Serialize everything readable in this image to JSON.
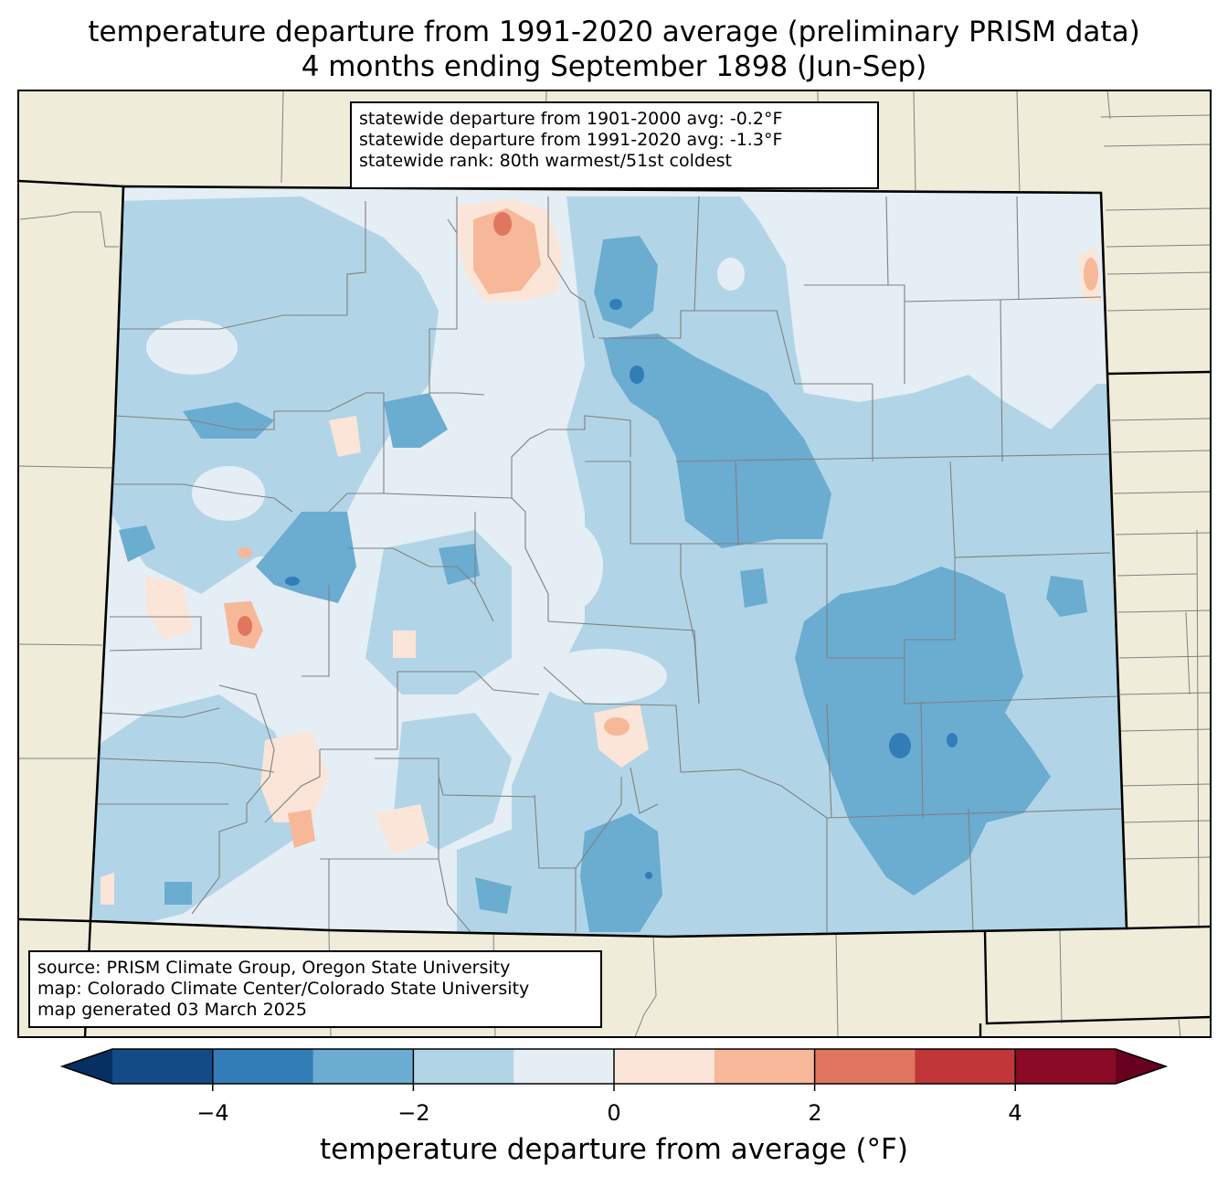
{
  "title": {
    "line1": "temperature departure from 1991-2020 average (preliminary PRISM data)",
    "line2": "4 months ending September 1898 (Jun-Sep)"
  },
  "stats": {
    "line1": "statewide departure from 1901-2000 avg: -0.2°F",
    "line2": "statewide departure from 1991-2020 avg: -1.3°F",
    "line3": "statewide rank: 80th warmest/51st coldest"
  },
  "credits": {
    "line1": "source: PRISM Climate Group, Oregon State University",
    "line2": "map: Colorado Climate Center/Colorado State University",
    "line3": "map generated 03 March 2025"
  },
  "colorbar": {
    "label": "temperature departure from average (°F)",
    "ticks": [
      "−4",
      "−2",
      "0",
      "2",
      "4"
    ],
    "tick_values": [
      -4,
      -2,
      0,
      2,
      4
    ],
    "bins": [
      {
        "from": -5,
        "to": -4,
        "color": "#134b87"
      },
      {
        "from": -4,
        "to": -3,
        "color": "#327db7"
      },
      {
        "from": -3,
        "to": -2,
        "color": "#6bacd1"
      },
      {
        "from": -2,
        "to": -1,
        "color": "#b1d5e7"
      },
      {
        "from": -1,
        "to": 0,
        "color": "#e5eef4"
      },
      {
        "from": 0,
        "to": 1,
        "color": "#fbe5d8"
      },
      {
        "from": 1,
        "to": 2,
        "color": "#f7b799"
      },
      {
        "from": 2,
        "to": 3,
        "color": "#e0765f"
      },
      {
        "from": 3,
        "to": 4,
        "color": "#c03639"
      },
      {
        "from": 4,
        "to": 5,
        "color": "#8b0a25"
      }
    ],
    "under_color": "#053061",
    "over_color": "#67001f"
  },
  "colors": {
    "land_background": "#efedda",
    "state_border": "#000000",
    "county_border": "#808080"
  }
}
